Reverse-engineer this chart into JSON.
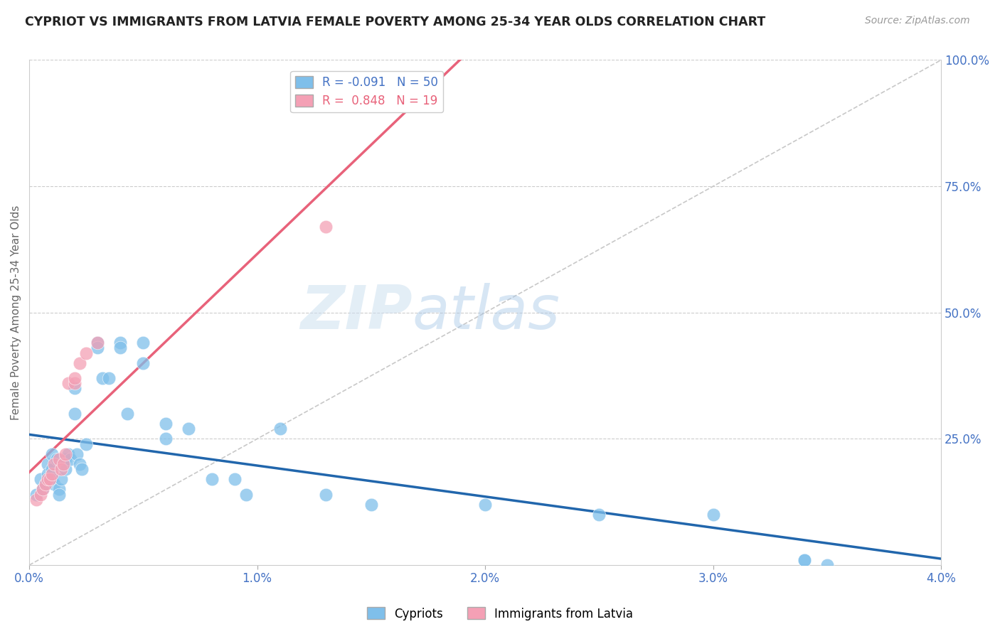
{
  "title": "CYPRIOT VS IMMIGRANTS FROM LATVIA FEMALE POVERTY AMONG 25-34 YEAR OLDS CORRELATION CHART",
  "source": "Source: ZipAtlas.com",
  "ylabel": "Female Poverty Among 25-34 Year Olds",
  "legend_label_1": "Cypriots",
  "legend_label_2": "Immigrants from Latvia",
  "r1": "-0.091",
  "n1": "50",
  "r2": "0.848",
  "n2": "19",
  "color_blue": "#7fbfea",
  "color_pink": "#f4a0b5",
  "color_line_blue": "#2166ac",
  "color_line_pink": "#e8627a",
  "color_ref_line": "#c8c8c8",
  "xlim": [
    0.0,
    0.04
  ],
  "ylim": [
    0.0,
    1.0
  ],
  "blue_x": [
    0.0003,
    0.0005,
    0.0006,
    0.0007,
    0.0008,
    0.0008,
    0.0009,
    0.001,
    0.001,
    0.001,
    0.0011,
    0.0012,
    0.0013,
    0.0013,
    0.0014,
    0.0015,
    0.0016,
    0.0016,
    0.0017,
    0.0018,
    0.002,
    0.002,
    0.0021,
    0.0022,
    0.0023,
    0.0025,
    0.003,
    0.003,
    0.0032,
    0.0035,
    0.004,
    0.004,
    0.0043,
    0.005,
    0.005,
    0.006,
    0.006,
    0.007,
    0.008,
    0.009,
    0.0095,
    0.011,
    0.013,
    0.015,
    0.02,
    0.025,
    0.03,
    0.034,
    0.034,
    0.035
  ],
  "blue_y": [
    0.14,
    0.17,
    0.15,
    0.16,
    0.2,
    0.18,
    0.17,
    0.22,
    0.19,
    0.17,
    0.16,
    0.21,
    0.15,
    0.14,
    0.17,
    0.2,
    0.21,
    0.19,
    0.22,
    0.21,
    0.35,
    0.3,
    0.22,
    0.2,
    0.19,
    0.24,
    0.44,
    0.43,
    0.37,
    0.37,
    0.44,
    0.43,
    0.3,
    0.44,
    0.4,
    0.28,
    0.25,
    0.27,
    0.17,
    0.17,
    0.14,
    0.27,
    0.14,
    0.12,
    0.12,
    0.1,
    0.1,
    0.01,
    0.01,
    0.0
  ],
  "pink_x": [
    0.0003,
    0.0005,
    0.0006,
    0.0007,
    0.0008,
    0.0009,
    0.001,
    0.0011,
    0.0013,
    0.0014,
    0.0015,
    0.0016,
    0.0017,
    0.002,
    0.002,
    0.0022,
    0.0025,
    0.003,
    0.013
  ],
  "pink_y": [
    0.13,
    0.14,
    0.15,
    0.16,
    0.17,
    0.17,
    0.18,
    0.2,
    0.21,
    0.19,
    0.2,
    0.22,
    0.36,
    0.36,
    0.37,
    0.4,
    0.42,
    0.44,
    0.67
  ],
  "watermark_zip": "ZIP",
  "watermark_atlas": "atlas",
  "figsize": [
    14.06,
    8.92
  ],
  "dpi": 100
}
